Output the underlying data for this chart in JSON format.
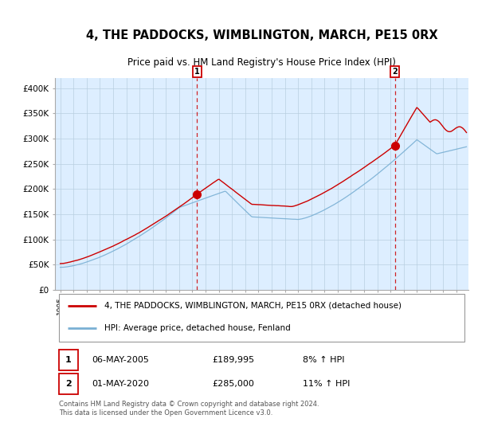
{
  "title": "4, THE PADDOCKS, WIMBLINGTON, MARCH, PE15 0RX",
  "subtitle": "Price paid vs. HM Land Registry's House Price Index (HPI)",
  "legend_property": "4, THE PADDOCKS, WIMBLINGTON, MARCH, PE15 0RX (detached house)",
  "legend_hpi": "HPI: Average price, detached house, Fenland",
  "transaction1_date": "06-MAY-2005",
  "transaction1_price": "£189,995",
  "transaction1_hpi": "8% ↑ HPI",
  "transaction2_date": "01-MAY-2020",
  "transaction2_price": "£285,000",
  "transaction2_hpi": "11% ↑ HPI",
  "copyright": "Contains HM Land Registry data © Crown copyright and database right 2024.\nThis data is licensed under the Open Government Licence v3.0.",
  "ylim": [
    0,
    420000
  ],
  "yticks": [
    0,
    50000,
    100000,
    150000,
    200000,
    250000,
    300000,
    350000,
    400000
  ],
  "ytick_labels": [
    "£0",
    "£50K",
    "£100K",
    "£150K",
    "£200K",
    "£250K",
    "£300K",
    "£350K",
    "£400K"
  ],
  "line_color_property": "#cc0000",
  "line_color_hpi": "#7ab0d4",
  "dot_color": "#cc0000",
  "vline_color": "#cc0000",
  "bg_color": "#ddeeff",
  "grid_color": "#b8cfe0",
  "transaction1_x": 2005.35,
  "transaction2_x": 2020.33,
  "xlim_left": 1994.6,
  "xlim_right": 2025.9
}
